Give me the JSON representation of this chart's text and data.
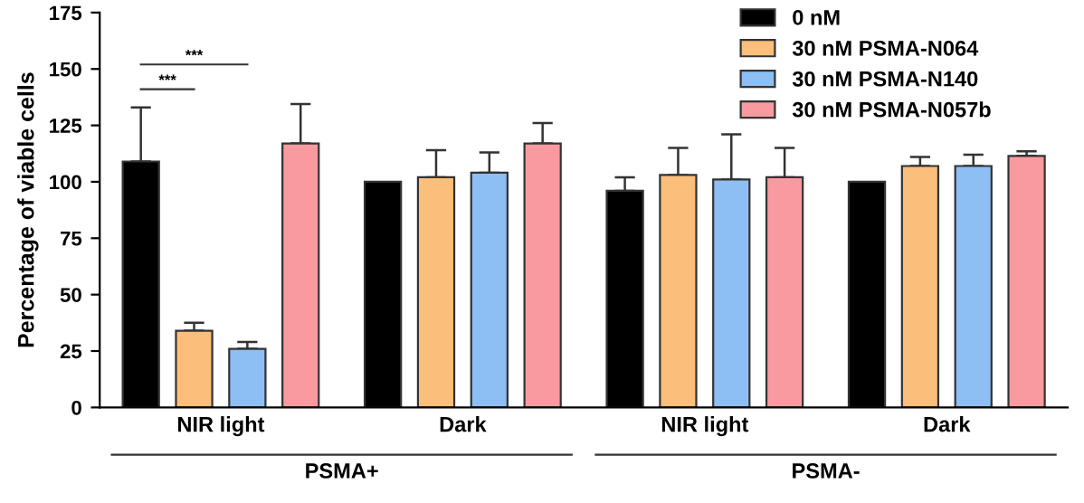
{
  "chart_data": {
    "type": "bar",
    "ylabel": "Percentage of viable cells",
    "categories": [
      "NIR light",
      "Dark",
      "NIR light",
      "Dark"
    ],
    "series": [
      {
        "name": "0 nM",
        "color": "#000000",
        "values": [
          109,
          100,
          96,
          100
        ],
        "errors": [
          [
            109,
            133
          ],
          null,
          [
            96,
            102
          ],
          null
        ]
      },
      {
        "name": "30 nM PSMA-N064",
        "color": "#fbbf7b",
        "values": [
          34,
          102,
          103,
          107
        ],
        "errors": [
          [
            34,
            37.5
          ],
          [
            102,
            114
          ],
          [
            103,
            115
          ],
          [
            107,
            111
          ]
        ]
      },
      {
        "name": "30 nM PSMA-N140",
        "color": "#8dbff5",
        "values": [
          26,
          104,
          101,
          107
        ],
        "errors": [
          [
            26,
            29
          ],
          [
            104,
            113
          ],
          [
            101,
            121
          ],
          [
            107,
            112
          ]
        ]
      },
      {
        "name": "30 nM PSMA-N057b",
        "color": "#f89aa0",
        "values": [
          117,
          117,
          102,
          111.5
        ],
        "errors": [
          [
            117,
            134.5
          ],
          [
            117,
            126
          ],
          [
            102,
            115
          ],
          [
            111.5,
            113.5
          ]
        ]
      }
    ],
    "ylim": [
      0,
      175
    ],
    "yticks": [
      0,
      25,
      50,
      75,
      100,
      125,
      150,
      175
    ],
    "annotations": [
      "***",
      "***",
      "PSMA+",
      "PSMA-"
    ],
    "legend": "top right",
    "grid": false
  }
}
